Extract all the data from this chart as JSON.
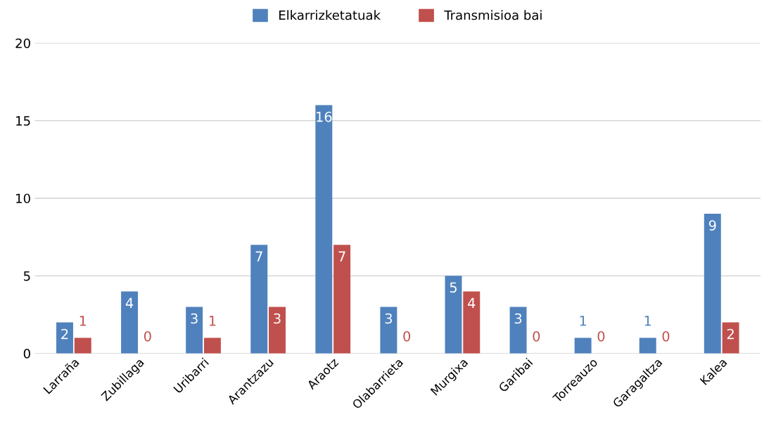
{
  "chart_data": {
    "type": "bar",
    "categories": [
      "Larraña",
      "Zubillaga",
      "Uribarri",
      "Arantzazu",
      "Araotz",
      "Olabarrieta",
      "Murgixa",
      "Garibai",
      "Torreauzo",
      "Garagaltza",
      "Kalea"
    ],
    "series": [
      {
        "name": "Elkarrizketatuak",
        "color": "#4f81bd",
        "values": [
          2,
          4,
          3,
          7,
          16,
          3,
          5,
          3,
          1,
          1,
          9
        ]
      },
      {
        "name": "Transmisioa bai",
        "color": "#c0504d",
        "values": [
          1,
          0,
          1,
          3,
          7,
          0,
          4,
          0,
          0,
          0,
          2
        ]
      }
    ],
    "ylim": [
      0,
      20
    ],
    "yticks": [
      0,
      5,
      10,
      15,
      20
    ],
    "grid": "y",
    "legend": "top",
    "data_labels": true
  }
}
